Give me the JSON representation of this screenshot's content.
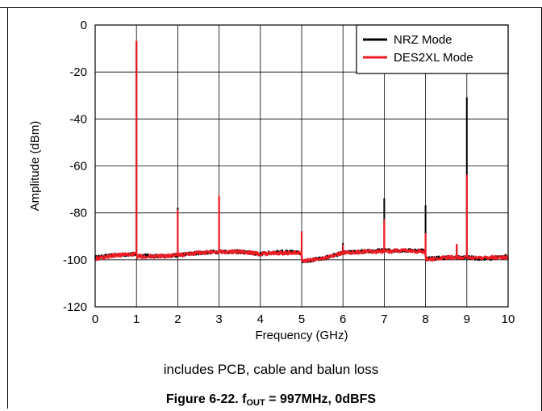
{
  "chart_data": {
    "type": "line",
    "title": "",
    "xlabel": "Frequency (GHz)",
    "ylabel": "Amplitude (dBm)",
    "xlim": [
      0,
      10
    ],
    "ylim": [
      -120,
      0
    ],
    "xticks": [
      0,
      1,
      2,
      3,
      4,
      5,
      6,
      7,
      8,
      9,
      10
    ],
    "yticks": [
      0,
      -20,
      -40,
      -60,
      -80,
      -100,
      -120
    ],
    "grid": true,
    "legend": "top-right",
    "series": [
      {
        "name": "NRZ Mode",
        "color": "#000000",
        "noise_floor": [
          [
            0,
            -99
          ],
          [
            0.5,
            -98
          ],
          [
            0.99,
            -97.5
          ],
          [
            1.01,
            -98
          ],
          [
            1.5,
            -98.5
          ],
          [
            2,
            -98
          ],
          [
            2.5,
            -97
          ],
          [
            3,
            -96.5
          ],
          [
            3.5,
            -96.5
          ],
          [
            4,
            -97.5
          ],
          [
            4.5,
            -96.5
          ],
          [
            4.99,
            -97
          ],
          [
            5.01,
            -100.5
          ],
          [
            5.5,
            -99.5
          ],
          [
            6,
            -97
          ],
          [
            6.5,
            -96.5
          ],
          [
            7,
            -96
          ],
          [
            7.5,
            -96
          ],
          [
            7.99,
            -96
          ],
          [
            8.01,
            -99.5
          ],
          [
            8.5,
            -99
          ],
          [
            9,
            -99
          ],
          [
            9.5,
            -99.5
          ],
          [
            10,
            -98.5
          ]
        ],
        "peaks": [
          {
            "x": 1,
            "y": -7
          },
          {
            "x": 2,
            "y": -78
          },
          {
            "x": 3,
            "y": -73.5
          },
          {
            "x": 5,
            "y": -88
          },
          {
            "x": 6,
            "y": -93
          },
          {
            "x": 7,
            "y": -74
          },
          {
            "x": 8,
            "y": -77
          },
          {
            "x": 8.75,
            "y": -94
          },
          {
            "x": 9,
            "y": -31
          }
        ]
      },
      {
        "name": "DES2XL Mode",
        "color": "#ee1c25",
        "noise_floor": [
          [
            0,
            -99.5
          ],
          [
            0.5,
            -98
          ],
          [
            0.99,
            -97.5
          ],
          [
            1.01,
            -98.5
          ],
          [
            1.5,
            -98.5
          ],
          [
            2,
            -98
          ],
          [
            2.5,
            -97
          ],
          [
            3,
            -96.5
          ],
          [
            3.5,
            -96.5
          ],
          [
            4,
            -97.5
          ],
          [
            4.5,
            -97
          ],
          [
            4.99,
            -97
          ],
          [
            5.01,
            -100.5
          ],
          [
            5.5,
            -99.5
          ],
          [
            6,
            -97
          ],
          [
            6.5,
            -96.5
          ],
          [
            7,
            -96.5
          ],
          [
            7.5,
            -96
          ],
          [
            7.99,
            -96.5
          ],
          [
            8.01,
            -100
          ],
          [
            8.5,
            -99
          ],
          [
            9,
            -99
          ],
          [
            9.5,
            -99
          ],
          [
            10,
            -99
          ]
        ],
        "peaks": [
          {
            "x": 1,
            "y": -7
          },
          {
            "x": 2,
            "y": -79
          },
          {
            "x": 3,
            "y": -73
          },
          {
            "x": 5,
            "y": -88
          },
          {
            "x": 6,
            "y": -94
          },
          {
            "x": 7,
            "y": -83
          },
          {
            "x": 8,
            "y": -89
          },
          {
            "x": 8.75,
            "y": -93.5
          },
          {
            "x": 9,
            "y": -64
          }
        ]
      }
    ]
  },
  "note": "includes PCB, cable and balun loss",
  "caption": {
    "prefix": "Figure 6-22. f",
    "sub": "OUT",
    "suffix": " = 997MHz, 0dBFS"
  }
}
